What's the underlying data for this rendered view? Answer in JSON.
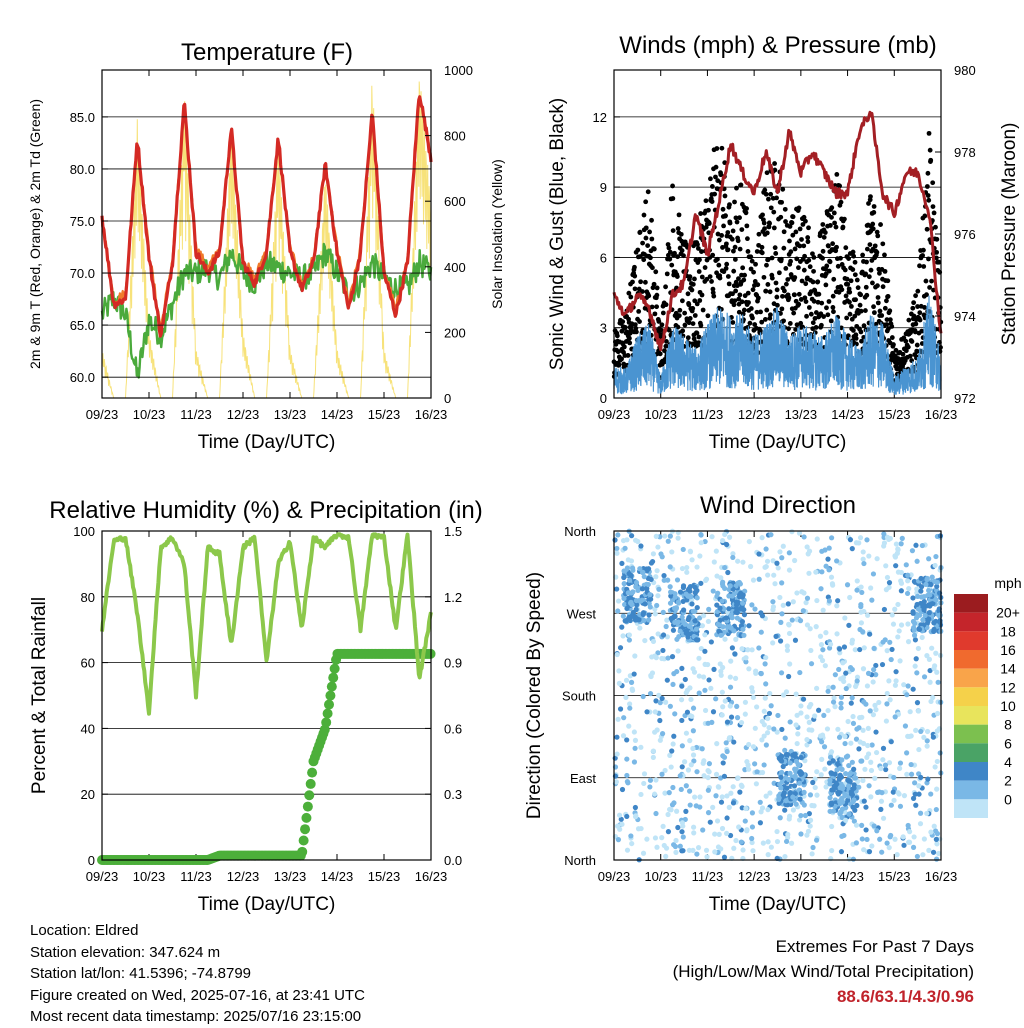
{
  "colors": {
    "red": "#d42a24",
    "orange": "#f07a2a",
    "green": "#4aaa3c",
    "yellow": "#f7e27a",
    "blue": "#4a94d1",
    "black": "#000000",
    "maroon": "#a31f24",
    "rh_green": "#8cc84b",
    "precip_green": "#4caf3a",
    "extremes": "#c0232b"
  },
  "time_ticks": [
    "09/23",
    "10/23",
    "11/23",
    "12/23",
    "13/23",
    "14/23",
    "15/23",
    "16/23"
  ],
  "x_label": "Time (Day/UTC)",
  "chart_data": [
    {
      "id": "temperature",
      "type": "line",
      "title": "Temperature (F)",
      "xlabel": "Time (Day/UTC)",
      "ylabel": "2m & 9m T (Red, Orange) & 2m Td (Green)",
      "y2label": "Solar Insolation (Yellow)",
      "ylim": [
        58.0,
        89.5
      ],
      "yticks": [
        "60.0",
        "65.0",
        "70.0",
        "75.0",
        "80.0",
        "85.0"
      ],
      "y2lim": [
        0,
        1000
      ],
      "y2ticks": [
        "0",
        "200",
        "400",
        "600",
        "800",
        "1000"
      ],
      "x": [
        0,
        0.25,
        0.5,
        0.75,
        1,
        1.25,
        1.5,
        1.75,
        2,
        2.25,
        2.5,
        2.75,
        3,
        3.25,
        3.5,
        3.75,
        4,
        4.25,
        4.5,
        4.75,
        5,
        5.25,
        5.5,
        5.75,
        6,
        6.25,
        6.5,
        6.75,
        7
      ],
      "series": [
        {
          "name": "2m T",
          "color": "#d42a24",
          "values": [
            75.5,
            67.0,
            67.5,
            83.0,
            71.5,
            64.0,
            71.0,
            86.5,
            72.0,
            70.0,
            72.0,
            84.0,
            71.0,
            69.0,
            72.0,
            83.0,
            72.0,
            68.5,
            71.0,
            80.5,
            72.0,
            66.5,
            72.0,
            85.5,
            70.0,
            66.0,
            71.0,
            87.5,
            81.0
          ]
        },
        {
          "name": "9m T",
          "color": "#f07a2a",
          "values": [
            75.2,
            67.4,
            68.0,
            82.4,
            72.0,
            64.6,
            71.4,
            85.8,
            72.5,
            70.4,
            72.4,
            83.4,
            71.4,
            69.4,
            72.4,
            82.4,
            72.4,
            68.9,
            71.4,
            80.0,
            72.4,
            66.9,
            72.4,
            85.0,
            70.4,
            66.4,
            71.4,
            86.8,
            81.4
          ]
        },
        {
          "name": "2m Td",
          "color": "#4aaa3c",
          "values": [
            66.0,
            67.5,
            66.0,
            60.0,
            65.5,
            64.0,
            67.0,
            70.0,
            70.0,
            70.5,
            69.5,
            72.0,
            70.0,
            69.0,
            71.0,
            70.5,
            70.0,
            69.5,
            70.0,
            72.0,
            70.0,
            68.0,
            69.0,
            71.0,
            69.5,
            68.5,
            68.5,
            71.0,
            70.0
          ]
        },
        {
          "name": "Solar Insolation",
          "color": "#f7e27a",
          "axis": "y2",
          "values": [
            150,
            0,
            0,
            850,
            200,
            0,
            0,
            950,
            150,
            0,
            0,
            850,
            200,
            0,
            0,
            800,
            150,
            0,
            0,
            700,
            150,
            0,
            0,
            1000,
            150,
            0,
            0,
            1000,
            600
          ]
        }
      ]
    },
    {
      "id": "winds",
      "type": "scatter",
      "title": "Winds (mph) & Pressure (mb)",
      "xlabel": "Time (Day/UTC)",
      "ylabel": "Sonic Wind & Gust (Blue, Black)",
      "y2label": "Station Pressure (Maroon)",
      "ylim": [
        0,
        14
      ],
      "yticks": [
        "0",
        "3",
        "6",
        "9",
        "12"
      ],
      "y2lim": [
        972,
        980
      ],
      "y2ticks": [
        "972",
        "974",
        "976",
        "978",
        "980"
      ],
      "x": [
        0,
        0.25,
        0.5,
        0.75,
        1,
        1.25,
        1.5,
        1.75,
        2,
        2.25,
        2.5,
        2.75,
        3,
        3.25,
        3.5,
        3.75,
        4,
        4.25,
        4.5,
        4.75,
        5,
        5.25,
        5.5,
        5.75,
        6,
        6.25,
        6.5,
        6.75,
        7
      ],
      "series": [
        {
          "name": "Sonic Wind",
          "color": "#4a94d1",
          "values": [
            0.8,
            0.7,
            1.5,
            1.8,
            0.5,
            1.8,
            1.5,
            1.2,
            1.8,
            2.2,
            2.0,
            2.0,
            1.5,
            1.8,
            2.2,
            1.5,
            1.8,
            1.6,
            1.5,
            2.0,
            1.5,
            1.2,
            2.0,
            1.8,
            0.5,
            0.8,
            1.0,
            2.5,
            1.0
          ]
        },
        {
          "name": "Gust",
          "color": "#000000",
          "values": [
            1.5,
            2.0,
            3.5,
            5.0,
            1.5,
            5.0,
            3.5,
            3.5,
            5.0,
            6.0,
            4.5,
            5.0,
            3.0,
            5.0,
            5.5,
            4.0,
            4.5,
            3.5,
            4.0,
            5.5,
            4.0,
            2.5,
            5.0,
            4.0,
            1.0,
            1.5,
            2.5,
            6.0,
            2.5
          ]
        },
        {
          "name": "Station Pressure",
          "color": "#a31f24",
          "axis": "y2",
          "values": [
            974.5,
            974.0,
            974.5,
            974.2,
            973.2,
            974.5,
            974.8,
            976.5,
            975.5,
            976.8,
            978.2,
            977.5,
            977.0,
            978.0,
            977.0,
            978.5,
            977.5,
            978.0,
            977.5,
            977.0,
            977.0,
            978.5,
            979.0,
            977.0,
            976.5,
            977.5,
            977.5,
            976.5,
            973.5
          ]
        }
      ]
    },
    {
      "id": "humidity",
      "type": "line",
      "title": "Relative Humidity (%) & Precipitation (in)",
      "xlabel": "Time (Day/UTC)",
      "ylabel": "Percent & Total Rainfall",
      "ylim": [
        0,
        100
      ],
      "yticks": [
        "0",
        "20",
        "40",
        "60",
        "80",
        "100"
      ],
      "y2lim": [
        0.0,
        1.5
      ],
      "y2ticks": [
        "0.0",
        "0.3",
        "0.6",
        "0.9",
        "1.2",
        "1.5"
      ],
      "x": [
        0,
        0.25,
        0.5,
        0.75,
        1,
        1.25,
        1.5,
        1.75,
        2,
        2.25,
        2.5,
        2.75,
        3,
        3.25,
        3.5,
        3.75,
        4,
        4.25,
        4.5,
        4.75,
        5,
        5.25,
        5.5,
        5.75,
        6,
        6.25,
        6.5,
        6.75,
        7
      ],
      "series": [
        {
          "name": "Relative Humidity",
          "color": "#8cc84b",
          "values": [
            70,
            97,
            98,
            75,
            45,
            95,
            98,
            90,
            50,
            95,
            93,
            65,
            95,
            98,
            60,
            90,
            97,
            70,
            98,
            95,
            99,
            98,
            70,
            99,
            98,
            70,
            99,
            55,
            75
          ]
        },
        {
          "name": "Total Precipitation",
          "color": "#4caf3a",
          "axis": "y2",
          "values": [
            0.0,
            0.0,
            0.0,
            0.0,
            0.0,
            0.0,
            0.0,
            0.0,
            0.0,
            0.0,
            0.02,
            0.02,
            0.02,
            0.02,
            0.02,
            0.02,
            0.02,
            0.02,
            0.45,
            0.6,
            0.94,
            0.94,
            0.94,
            0.94,
            0.94,
            0.94,
            0.94,
            0.94,
            0.94
          ]
        }
      ]
    },
    {
      "id": "wind_direction",
      "type": "scatter",
      "title": "Wind Direction",
      "xlabel": "Time (Day/UTC)",
      "ylabel": "Direction (Colored By Speed)",
      "yticks": [
        "North",
        "East",
        "South",
        "West",
        "North"
      ],
      "colorbar_title": "mph",
      "colorbar_labels": [
        "20+",
        "18",
        "16",
        "14",
        "12",
        "10",
        "8",
        "6",
        "4",
        "2",
        "0"
      ],
      "colorbar_colors": [
        "#9b1c1f",
        "#c4252b",
        "#e03a2d",
        "#f06a2e",
        "#f9a44a",
        "#f5d14a",
        "#e8e45c",
        "#7cc04f",
        "#4aa366",
        "#3f86c7",
        "#7ab8e6",
        "#bfe4f7"
      ],
      "clusters": [
        {
          "x": 0.5,
          "dir": 290
        },
        {
          "x": 1.5,
          "dir": 270
        },
        {
          "x": 2.5,
          "dir": 275
        },
        {
          "x": 3.8,
          "dir": 90
        },
        {
          "x": 4.9,
          "dir": 80
        },
        {
          "x": 6.7,
          "dir": 280
        }
      ]
    }
  ],
  "footer": {
    "location": "Location: Eldred",
    "elevation": "Station elevation: 347.624 m",
    "latlon": "Station lat/lon: 41.5396; -74.8799",
    "created": "Figure created on Wed, 2025-07-16, at 23:41 UTC",
    "recent": "Most recent data timestamp: 2025/07/16 23:15:00"
  },
  "extremes": {
    "title": "Extremes For Past 7 Days",
    "subtitle": "(High/Low/Max Wind/Total Precipitation)",
    "values": "88.6/63.1/4.3/0.96"
  }
}
